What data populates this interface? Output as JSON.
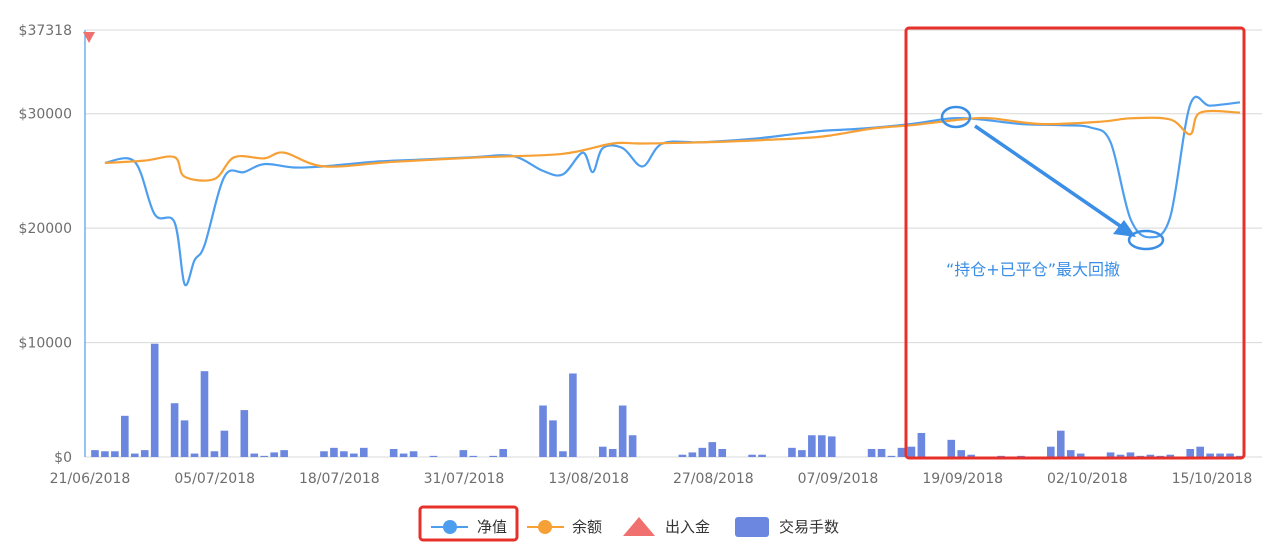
{
  "chart_data": {
    "type": "line",
    "x_ticks": [
      "21/06/2018",
      "05/07/2018",
      "18/07/2018",
      "31/07/2018",
      "13/08/2018",
      "27/08/2018",
      "07/09/2018",
      "19/09/2018",
      "02/10/2018",
      "15/10/2018"
    ],
    "y_ticks": [
      "$0",
      "$10000",
      "$20000",
      "$30000",
      "$37318"
    ],
    "y_tick_values": [
      0,
      10000,
      20000,
      30000,
      37318
    ],
    "ylim": [
      0,
      37318
    ],
    "x_range": [
      "2018-06-21",
      "2018-10-15"
    ],
    "grid": true,
    "legend_position": "bottom",
    "series": [
      {
        "name": "净值",
        "type": "line",
        "color": "#4e9ef0",
        "x": [
          "2018-06-23",
          "2018-06-26",
          "2018-06-28",
          "2018-06-30",
          "2018-07-01",
          "2018-07-02",
          "2018-07-03",
          "2018-07-05",
          "2018-07-07",
          "2018-07-09",
          "2018-07-12",
          "2018-07-15",
          "2018-07-20",
          "2018-07-25",
          "2018-07-30",
          "2018-08-03",
          "2018-08-06",
          "2018-08-08",
          "2018-08-10",
          "2018-08-11",
          "2018-08-12",
          "2018-08-14",
          "2018-08-16",
          "2018-08-18",
          "2018-08-22",
          "2018-08-27",
          "2018-08-31",
          "2018-09-03",
          "2018-09-07",
          "2018-09-12",
          "2018-09-16",
          "2018-09-19",
          "2018-09-23",
          "2018-09-27",
          "2018-09-30",
          "2018-10-02",
          "2018-10-04",
          "2018-10-06",
          "2018-10-08",
          "2018-10-10",
          "2018-10-12",
          "2018-10-15"
        ],
        "y": [
          25700,
          25800,
          21200,
          20500,
          15100,
          17200,
          18500,
          24500,
          24900,
          25600,
          25300,
          25400,
          25800,
          26000,
          26200,
          26300,
          25000,
          24700,
          26600,
          24900,
          27000,
          27000,
          25400,
          27400,
          27500,
          27800,
          28200,
          28500,
          28700,
          29100,
          29600,
          29500,
          29100,
          29000,
          28800,
          27500,
          20800,
          19200,
          21000,
          30800,
          30700,
          31000
        ]
      },
      {
        "name": "余额",
        "type": "line",
        "color": "#f7a035",
        "x": [
          "2018-06-23",
          "2018-06-27",
          "2018-06-30",
          "2018-07-01",
          "2018-07-04",
          "2018-07-06",
          "2018-07-09",
          "2018-07-11",
          "2018-07-15",
          "2018-07-22",
          "2018-07-31",
          "2018-08-08",
          "2018-08-13",
          "2018-08-16",
          "2018-08-22",
          "2018-08-28",
          "2018-09-03",
          "2018-09-08",
          "2018-09-12",
          "2018-09-17",
          "2018-09-20",
          "2018-09-25",
          "2018-10-01",
          "2018-10-04",
          "2018-10-08",
          "2018-10-10",
          "2018-10-11",
          "2018-10-15"
        ],
        "y": [
          25700,
          25900,
          26200,
          24500,
          24300,
          26200,
          26100,
          26600,
          25400,
          25800,
          26200,
          26500,
          27400,
          27400,
          27500,
          27700,
          28000,
          28700,
          29000,
          29500,
          29600,
          29100,
          29300,
          29600,
          29500,
          28200,
          30100,
          30100
        ]
      },
      {
        "name": "出入金",
        "type": "marker",
        "color": "#f07070",
        "x": [
          "2018-06-21"
        ],
        "y": [
          37318
        ]
      },
      {
        "name": "交易手数",
        "type": "bar",
        "color": "#6b87df",
        "x": [
          "2018-06-22",
          "2018-06-23",
          "2018-06-24",
          "2018-06-25",
          "2018-06-26",
          "2018-06-27",
          "2018-06-28",
          "2018-06-30",
          "2018-07-01",
          "2018-07-02",
          "2018-07-03",
          "2018-07-04",
          "2018-07-05",
          "2018-07-07",
          "2018-07-08",
          "2018-07-09",
          "2018-07-10",
          "2018-07-11",
          "2018-07-15",
          "2018-07-16",
          "2018-07-17",
          "2018-07-18",
          "2018-07-19",
          "2018-07-22",
          "2018-07-23",
          "2018-07-24",
          "2018-07-26",
          "2018-07-29",
          "2018-07-30",
          "2018-08-01",
          "2018-08-02",
          "2018-08-06",
          "2018-08-07",
          "2018-08-08",
          "2018-08-09",
          "2018-08-12",
          "2018-08-13",
          "2018-08-14",
          "2018-08-15",
          "2018-08-20",
          "2018-08-21",
          "2018-08-22",
          "2018-08-23",
          "2018-08-24",
          "2018-08-27",
          "2018-08-28",
          "2018-08-31",
          "2018-09-01",
          "2018-09-02",
          "2018-09-03",
          "2018-09-04",
          "2018-09-08",
          "2018-09-09",
          "2018-09-10",
          "2018-09-11",
          "2018-09-12",
          "2018-09-13",
          "2018-09-16",
          "2018-09-17",
          "2018-09-18",
          "2018-09-21",
          "2018-09-23",
          "2018-09-26",
          "2018-09-27",
          "2018-09-28",
          "2018-09-29",
          "2018-10-02",
          "2018-10-03",
          "2018-10-04",
          "2018-10-05",
          "2018-10-06",
          "2018-10-07",
          "2018-10-08",
          "2018-10-10",
          "2018-10-11",
          "2018-10-12",
          "2018-10-13",
          "2018-10-14",
          "2018-10-15"
        ],
        "y": [
          600,
          500,
          500,
          3600,
          300,
          600,
          9900,
          4700,
          3200,
          300,
          7500,
          500,
          2300,
          4100,
          300,
          100,
          400,
          600,
          500,
          800,
          500,
          300,
          800,
          700,
          300,
          500,
          100,
          600,
          100,
          100,
          700,
          4500,
          3200,
          500,
          7300,
          900,
          700,
          4500,
          1900,
          200,
          400,
          800,
          1300,
          700,
          200,
          200,
          800,
          600,
          1900,
          1900,
          1800,
          700,
          700,
          100,
          800,
          900,
          2100,
          1500,
          600,
          200,
          100,
          100,
          900,
          2300,
          600,
          300,
          400,
          200,
          400,
          100,
          200,
          100,
          200,
          700,
          900,
          300,
          300,
          300,
          100
        ]
      }
    ]
  },
  "annotations": {
    "drawdown_label": "“持仓+已平仓”最大回撤"
  },
  "colors": {
    "highlight": "#e8302a",
    "grid": "#d8d8d8",
    "axis": "#4e9ef0"
  }
}
